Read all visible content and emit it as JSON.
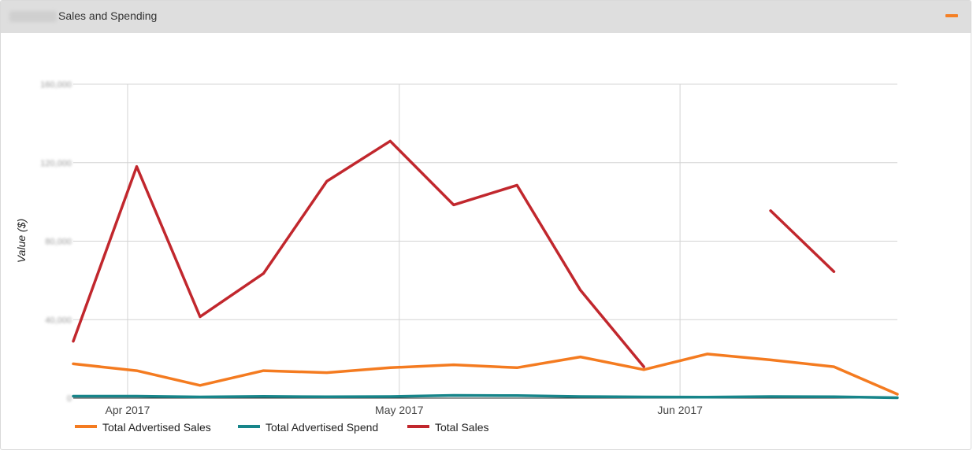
{
  "panel": {
    "title": "Sales and Spending",
    "collapse_icon": "minus-icon",
    "accent_color": "#f58025"
  },
  "chart_data": {
    "type": "line",
    "title": "Sales and Spending",
    "xlabel": "",
    "ylabel": "Value ($)",
    "x_tick_labels": [
      "Apr 2017",
      "May 2017",
      "Jun 2017"
    ],
    "y_tick_labels": [
      "0",
      "40,000",
      "80,000",
      "120,000",
      "160,000"
    ],
    "ylim": [
      0,
      160000
    ],
    "grid": true,
    "legend_position": "bottom-left",
    "x": [
      "2017-03-26",
      "2017-04-02",
      "2017-04-09",
      "2017-04-16",
      "2017-04-23",
      "2017-04-30",
      "2017-05-07",
      "2017-05-14",
      "2017-05-21",
      "2017-05-28",
      "2017-06-04",
      "2017-06-11",
      "2017-06-18",
      "2017-06-25"
    ],
    "series": [
      {
        "name": "Total Advertised Sales",
        "color": "#f47b20",
        "values": [
          17500,
          14000,
          6500,
          14000,
          13000,
          15500,
          17000,
          15500,
          21000,
          14500,
          22500,
          19500,
          16000,
          2000
        ]
      },
      {
        "name": "Total Advertised Spend",
        "color": "#17858a",
        "values": [
          1000,
          1000,
          600,
          900,
          700,
          800,
          1400,
          1300,
          800,
          600,
          500,
          800,
          700,
          200
        ]
      },
      {
        "name": "Total Sales",
        "color": "#c1272d",
        "values": [
          29000,
          118000,
          41500,
          63500,
          110500,
          131000,
          98500,
          108500,
          55000,
          16000,
          null,
          95500,
          64500,
          null
        ]
      }
    ]
  }
}
